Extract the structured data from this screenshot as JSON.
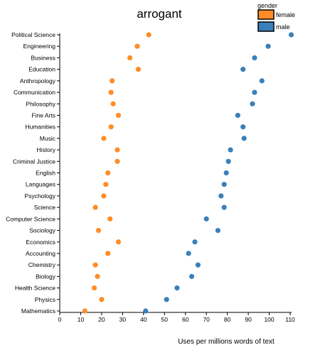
{
  "chart_data": {
    "type": "scatter",
    "title": "arrogant",
    "xlabel": "Uses per millions words of text",
    "ylabel": "",
    "xlim": [
      0,
      110
    ],
    "xticks": [
      0,
      10,
      20,
      30,
      40,
      50,
      60,
      70,
      80,
      90,
      100,
      110
    ],
    "grid": false,
    "legend": {
      "title": "gender",
      "position": "top-right"
    },
    "categories": [
      "Political Science",
      "Engineering",
      "Business",
      "Education",
      "Anthropology",
      "Communication",
      "Philosophy",
      "Fine Arts",
      "Humanities",
      "Music",
      "History",
      "Criminal Justice",
      "English",
      "Languages",
      "Psychology",
      "Science",
      "Computer Science",
      "Sociology",
      "Economics",
      "Accounting",
      "Chemistry",
      "Biology",
      "Health Science",
      "Physics",
      "Mathematics"
    ],
    "series": [
      {
        "name": "female",
        "color": "#ff8c26",
        "values": [
          42.5,
          37,
          33.5,
          37.5,
          25,
          24.5,
          25.5,
          28,
          24.5,
          21,
          27.5,
          27.5,
          23,
          22,
          21,
          17,
          24,
          18.5,
          28,
          23,
          17,
          18,
          16.5,
          20,
          12
        ]
      },
      {
        "name": "male",
        "color": "#3a7fba",
        "values": [
          110.5,
          99.5,
          93,
          87.5,
          96.5,
          93,
          92,
          85,
          87.5,
          88,
          81.5,
          80.5,
          79.5,
          78.5,
          77,
          78.5,
          70,
          75.5,
          64.5,
          61.5,
          66,
          63,
          56,
          51,
          41
        ]
      }
    ]
  }
}
